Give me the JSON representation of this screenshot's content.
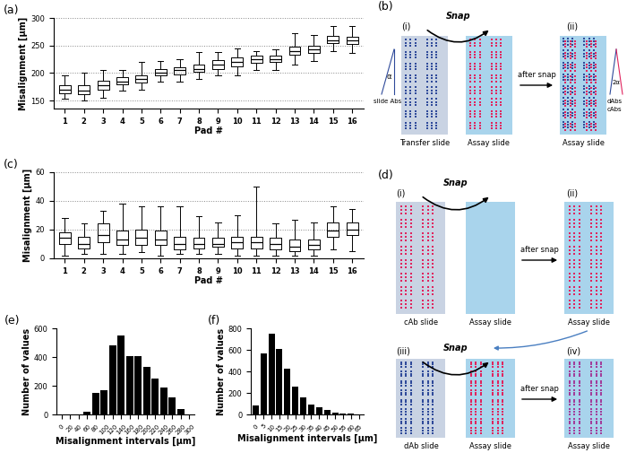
{
  "chart_data": [
    {
      "type": "box",
      "title": "(a)",
      "x_label": "Pad #",
      "y_label": "Misalignment [µm]",
      "categories": [
        "1",
        "2",
        "3",
        "4",
        "5",
        "6",
        "7",
        "8",
        "9",
        "10",
        "11",
        "12",
        "13",
        "14",
        "15",
        "16"
      ],
      "min": [
        153,
        150,
        155,
        168,
        170,
        185,
        185,
        190,
        195,
        195,
        205,
        205,
        215,
        222,
        240,
        237
      ],
      "q1": [
        163,
        162,
        170,
        180,
        183,
        195,
        198,
        202,
        207,
        212,
        218,
        220,
        233,
        237,
        254,
        253
      ],
      "median": [
        170,
        168,
        178,
        185,
        190,
        200,
        205,
        208,
        215,
        220,
        225,
        225,
        240,
        243,
        260,
        260
      ],
      "q3": [
        178,
        177,
        186,
        192,
        196,
        207,
        211,
        215,
        224,
        228,
        232,
        232,
        248,
        250,
        267,
        266
      ],
      "max": [
        195,
        200,
        205,
        205,
        220,
        222,
        225,
        238,
        238,
        245,
        240,
        243,
        272,
        270,
        285,
        285
      ],
      "ylim": [
        135,
        300
      ],
      "yticks": [
        150,
        200,
        250,
        300
      ],
      "grid": true,
      "color": "#000000"
    },
    {
      "type": "box",
      "title": "(c)",
      "x_label": "Pad #",
      "y_label": "Misalignment [µm]",
      "categories": [
        "1",
        "2",
        "3",
        "4",
        "5",
        "6",
        "7",
        "8",
        "9",
        "10",
        "11",
        "12",
        "13",
        "14",
        "15",
        "16"
      ],
      "min": [
        2,
        3,
        3,
        3,
        4,
        2,
        3,
        3,
        3,
        2,
        2,
        2,
        2,
        2,
        6,
        5
      ],
      "q1": [
        10,
        7,
        11,
        9,
        9,
        9,
        6,
        7,
        8,
        7,
        7,
        6,
        5,
        6,
        15,
        16
      ],
      "median": [
        14,
        10,
        16,
        13,
        14,
        13,
        10,
        10,
        10,
        11,
        11,
        10,
        8,
        9,
        19,
        20
      ],
      "q3": [
        18,
        15,
        24,
        19,
        20,
        19,
        15,
        14,
        14,
        15,
        15,
        14,
        13,
        13,
        25,
        25
      ],
      "max": [
        28,
        24,
        33,
        38,
        36,
        36,
        36,
        29,
        25,
        30,
        50,
        24,
        27,
        25,
        36,
        34
      ],
      "ylim": [
        0,
        60
      ],
      "yticks": [
        0,
        20,
        40,
        60
      ],
      "grid": true,
      "color": "#000000"
    },
    {
      "type": "bar",
      "title": "(e)",
      "x_label": "Misalignment intervals [µm]",
      "y_label": "Number of values",
      "categories": [
        "0",
        "20",
        "40",
        "60",
        "80",
        "100",
        "120",
        "140",
        "160",
        "180",
        "200",
        "220",
        "240",
        "260",
        "280",
        "300"
      ],
      "values": [
        0,
        0,
        0,
        20,
        150,
        170,
        480,
        550,
        410,
        410,
        330,
        250,
        190,
        120,
        40,
        0
      ],
      "ylim": [
        0,
        600
      ],
      "yticks": [
        0,
        200,
        400,
        600
      ],
      "grid": false,
      "color": "#000000"
    },
    {
      "type": "bar",
      "title": "(f)",
      "x_label": "Misalignment intervals [µm]",
      "y_label": "Number of values",
      "categories": [
        "0",
        "5",
        "10",
        "15",
        "20",
        "25",
        "30",
        "35",
        "40",
        "45",
        "50",
        "55",
        "60",
        "65"
      ],
      "values": [
        80,
        570,
        750,
        610,
        430,
        260,
        160,
        90,
        70,
        40,
        20,
        10,
        5,
        0
      ],
      "ylim": [
        0,
        800
      ],
      "yticks": [
        0,
        200,
        400,
        600,
        800
      ],
      "grid": false,
      "color": "#000000"
    }
  ],
  "diagrams": {
    "b": {
      "label": "(b)",
      "snap": "Snap",
      "after_snap": "after snap",
      "steps": [
        "(i)",
        "(ii)"
      ],
      "slides": [
        "Transfer slide",
        "Assay slide",
        "Assay slide"
      ],
      "angle_left": {
        "label": "slide Abs",
        "angle": "α"
      },
      "angle_right": {
        "labels": [
          "dAbs",
          "cAbs"
        ],
        "angle": "2α"
      }
    },
    "d": {
      "label": "(d)",
      "snap": "Snap",
      "after_snap": "after snap",
      "steps": [
        "(i)",
        "(ii)",
        "(iii)",
        "(iv)"
      ],
      "slides_top": [
        "cAb slide",
        "Assay slide",
        "Assay slide"
      ],
      "slides_bottom": [
        "dAb slide",
        "Assay slide",
        "Assay slide"
      ]
    }
  }
}
